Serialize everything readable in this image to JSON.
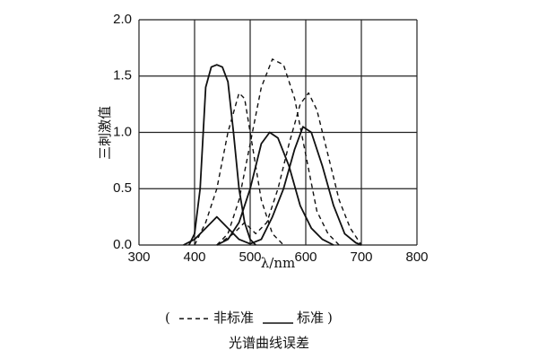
{
  "chart_data": {
    "type": "line",
    "ylabel": "三刺激值",
    "xlabel": "λ/nm",
    "caption": "光谱曲线误差",
    "legend_open": "(",
    "legend_close": ")",
    "legend": [
      {
        "label": "非标准",
        "style": "dashed"
      },
      {
        "label": "标准",
        "style": "solid"
      }
    ],
    "xlim": [
      300,
      800
    ],
    "xticks": [
      300,
      400,
      500,
      600,
      700,
      800
    ],
    "ylim": [
      0,
      2.0
    ],
    "yticks": [
      {
        "value": 0,
        "label": "0.0"
      },
      0.5,
      {
        "value": 1,
        "label": "1.0"
      },
      1.5,
      {
        "value": 2,
        "label": "2.0"
      }
    ],
    "grid": true,
    "color": "#111111",
    "series": [
      {
        "style": "solid",
        "x": [
          390,
          400,
          410,
          420,
          430,
          440,
          450,
          460,
          470,
          480,
          490,
          500,
          510
        ],
        "values": [
          0,
          0.1,
          0.5,
          1.4,
          1.58,
          1.6,
          1.58,
          1.45,
          1.0,
          0.5,
          0.2,
          0.05,
          0
        ]
      },
      {
        "style": "solid",
        "x": [
          440,
          460,
          480,
          500,
          520,
          535,
          550,
          570,
          590,
          610,
          630,
          650
        ],
        "values": [
          0,
          0.05,
          0.2,
          0.5,
          0.9,
          1.0,
          0.95,
          0.7,
          0.35,
          0.15,
          0.05,
          0
        ]
      },
      {
        "style": "solid",
        "x": [
          380,
          400,
          420,
          440,
          460,
          480,
          500,
          520,
          540,
          560,
          580,
          595,
          610,
          630,
          650,
          670,
          690,
          700
        ],
        "values": [
          0,
          0.05,
          0.15,
          0.25,
          0.15,
          0.05,
          0.01,
          0.05,
          0.25,
          0.5,
          0.85,
          1.05,
          1.0,
          0.7,
          0.35,
          0.1,
          0.02,
          0
        ]
      },
      {
        "style": "dashed",
        "x": [
          400,
          420,
          440,
          460,
          480,
          490,
          500,
          520,
          540,
          560
        ],
        "values": [
          0,
          0.2,
          0.5,
          1.0,
          1.35,
          1.3,
          1.0,
          0.4,
          0.1,
          0
        ]
      },
      {
        "style": "dashed",
        "x": [
          440,
          460,
          480,
          500,
          520,
          540,
          560,
          580,
          600,
          620,
          640,
          660
        ],
        "values": [
          0,
          0.1,
          0.4,
          0.9,
          1.4,
          1.65,
          1.6,
          1.3,
          0.8,
          0.3,
          0.1,
          0
        ]
      },
      {
        "style": "dashed",
        "x": [
          440,
          470,
          490,
          510,
          530,
          550,
          570,
          590,
          605,
          620,
          640,
          660,
          680,
          700
        ],
        "values": [
          0,
          0.1,
          0.2,
          0.1,
          0.2,
          0.5,
          0.9,
          1.25,
          1.35,
          1.2,
          0.8,
          0.4,
          0.15,
          0
        ]
      }
    ]
  }
}
